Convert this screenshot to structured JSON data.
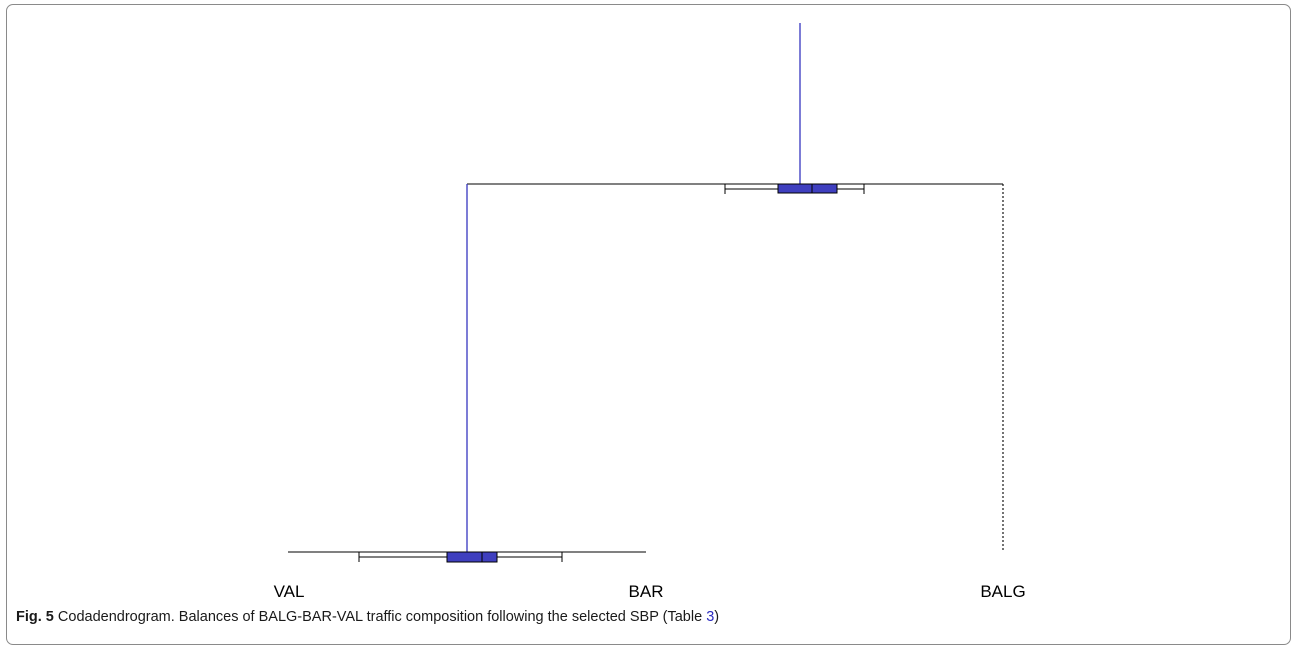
{
  "diagram": {
    "type": "codadendrogram",
    "leaves": [
      "VAL",
      "BAR",
      "BALG"
    ],
    "colors": {
      "box": "#3f3fbf",
      "line": "#000000",
      "stem": "#3535c0"
    }
  },
  "caption": {
    "label": "Fig. 5",
    "text_before": " Codadendrogram. Balances of BALG-BAR-VAL traffic composition following the selected SBP (Table ",
    "ref": "3",
    "text_after": ")"
  }
}
